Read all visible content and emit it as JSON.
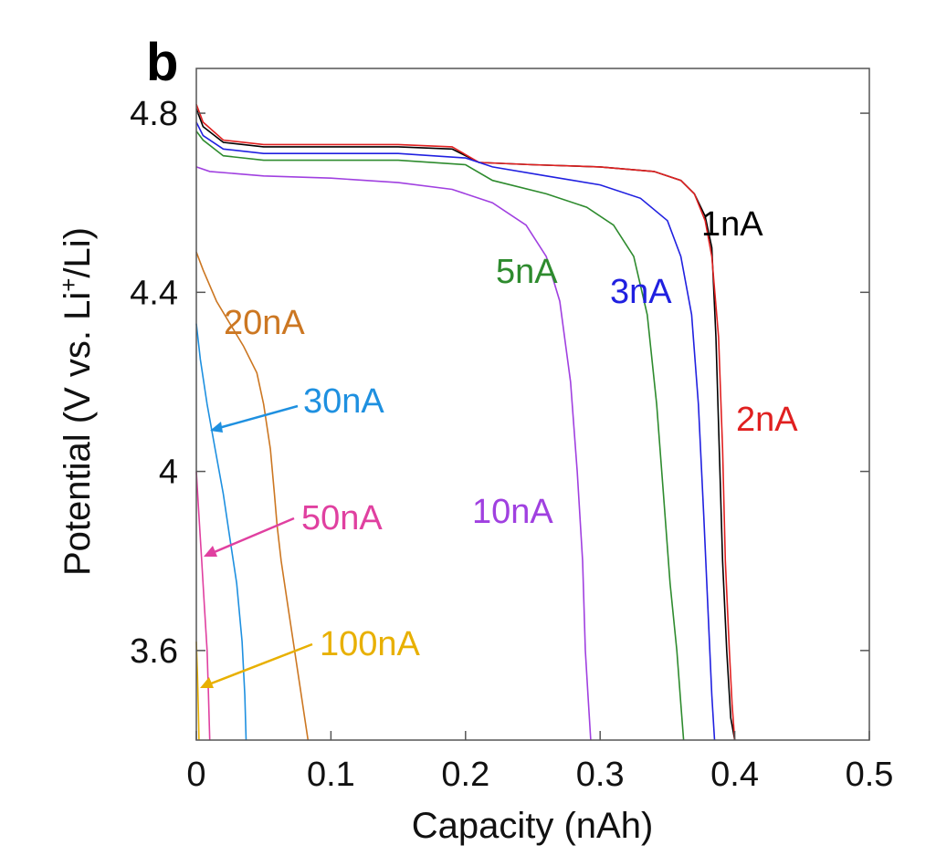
{
  "chart_data": {
    "type": "line",
    "panel_label": "b",
    "xlabel": "Capacity (nAh)",
    "ylabel_parts": [
      "Potential (V vs. Li",
      "+",
      "/Li)"
    ],
    "xlim": [
      0,
      0.5
    ],
    "ylim": [
      3.4,
      4.9
    ],
    "xticks": [
      0,
      0.1,
      0.2,
      0.3,
      0.4,
      0.5
    ],
    "xtick_labels": [
      "0",
      "0.1",
      "0.2",
      "0.3",
      "0.4",
      "0.5"
    ],
    "yticks": [
      3.6,
      4.0,
      4.4,
      4.8
    ],
    "ytick_labels": [
      "3.6",
      "4",
      "4.4",
      "4.8"
    ],
    "grid": false,
    "legend": "inline labels",
    "series": [
      {
        "name": "1nA",
        "color": "#000000",
        "x": [
          0,
          0.005,
          0.02,
          0.05,
          0.1,
          0.15,
          0.19,
          0.21,
          0.25,
          0.3,
          0.34,
          0.36,
          0.37,
          0.378,
          0.383,
          0.386,
          0.389,
          0.391,
          0.394,
          0.397,
          0.4
        ],
        "y": [
          4.81,
          4.77,
          4.735,
          4.725,
          4.725,
          4.725,
          4.72,
          4.69,
          4.685,
          4.68,
          4.67,
          4.65,
          4.62,
          4.57,
          4.5,
          4.3,
          4.0,
          3.8,
          3.6,
          3.45,
          3.4
        ]
      },
      {
        "name": "2nA",
        "color": "#e02020",
        "x": [
          0,
          0.005,
          0.02,
          0.05,
          0.1,
          0.15,
          0.19,
          0.21,
          0.25,
          0.3,
          0.34,
          0.36,
          0.37,
          0.378,
          0.383,
          0.388,
          0.391,
          0.393,
          0.396,
          0.398,
          0.4
        ],
        "y": [
          4.82,
          4.78,
          4.74,
          4.73,
          4.73,
          4.73,
          4.725,
          4.69,
          4.685,
          4.68,
          4.67,
          4.65,
          4.62,
          4.56,
          4.48,
          4.3,
          4.05,
          3.8,
          3.6,
          3.48,
          3.4
        ]
      },
      {
        "name": "3nA",
        "color": "#2020e0",
        "x": [
          0,
          0.005,
          0.02,
          0.05,
          0.1,
          0.15,
          0.2,
          0.22,
          0.26,
          0.3,
          0.33,
          0.35,
          0.36,
          0.368,
          0.373,
          0.377,
          0.38,
          0.383,
          0.385
        ],
        "y": [
          4.78,
          4.75,
          4.72,
          4.71,
          4.71,
          4.71,
          4.7,
          4.68,
          4.66,
          4.64,
          4.61,
          4.56,
          4.48,
          4.35,
          4.15,
          3.9,
          3.7,
          3.5,
          3.4
        ]
      },
      {
        "name": "5nA",
        "color": "#2e8b2e",
        "x": [
          0,
          0.005,
          0.02,
          0.05,
          0.1,
          0.15,
          0.2,
          0.22,
          0.26,
          0.29,
          0.31,
          0.325,
          0.335,
          0.342,
          0.347,
          0.352,
          0.357,
          0.36,
          0.362
        ],
        "y": [
          4.76,
          4.74,
          4.705,
          4.695,
          4.695,
          4.695,
          4.685,
          4.65,
          4.62,
          4.59,
          4.55,
          4.48,
          4.35,
          4.15,
          3.95,
          3.75,
          3.6,
          3.48,
          3.4
        ]
      },
      {
        "name": "10nA",
        "color": "#a040e0",
        "x": [
          0,
          0.01,
          0.05,
          0.1,
          0.15,
          0.19,
          0.22,
          0.245,
          0.26,
          0.27,
          0.278,
          0.283,
          0.287,
          0.289,
          0.291,
          0.293
        ],
        "y": [
          4.68,
          4.67,
          4.66,
          4.655,
          4.645,
          4.63,
          4.6,
          4.55,
          4.48,
          4.38,
          4.2,
          4.0,
          3.8,
          3.6,
          3.5,
          3.4
        ]
      },
      {
        "name": "20nA",
        "color": "#cc7722",
        "x": [
          0,
          0.005,
          0.015,
          0.025,
          0.035,
          0.045,
          0.05,
          0.055,
          0.058,
          0.06,
          0.063,
          0.068,
          0.073,
          0.077,
          0.08,
          0.083
        ],
        "y": [
          4.49,
          4.45,
          4.38,
          4.33,
          4.28,
          4.22,
          4.15,
          4.05,
          3.95,
          3.88,
          3.8,
          3.7,
          3.6,
          3.52,
          3.46,
          3.4
        ]
      },
      {
        "name": "30nA",
        "color": "#1e90e0",
        "x": [
          0,
          0.003,
          0.008,
          0.014,
          0.02,
          0.025,
          0.03,
          0.034,
          0.036,
          0.037
        ],
        "y": [
          4.33,
          4.25,
          4.15,
          4.05,
          3.95,
          3.85,
          3.75,
          3.62,
          3.5,
          3.4
        ]
      },
      {
        "name": "50nA",
        "color": "#e040a0",
        "x": [
          0,
          0.002,
          0.004,
          0.006,
          0.008,
          0.009,
          0.01
        ],
        "y": [
          4.0,
          3.9,
          3.8,
          3.7,
          3.6,
          3.5,
          3.4
        ]
      },
      {
        "name": "100nA",
        "color": "#e8b000",
        "x": [
          0,
          0.0008,
          0.0015,
          0.002
        ],
        "y": [
          3.62,
          3.55,
          3.47,
          3.4
        ]
      }
    ]
  },
  "labels": {
    "s1": "1nA",
    "s2": "2nA",
    "s3": "3nA",
    "s5": "5nA",
    "s10": "10nA",
    "s20": "20nA",
    "s30": "30nA",
    "s50": "50nA",
    "s100": "100nA"
  }
}
